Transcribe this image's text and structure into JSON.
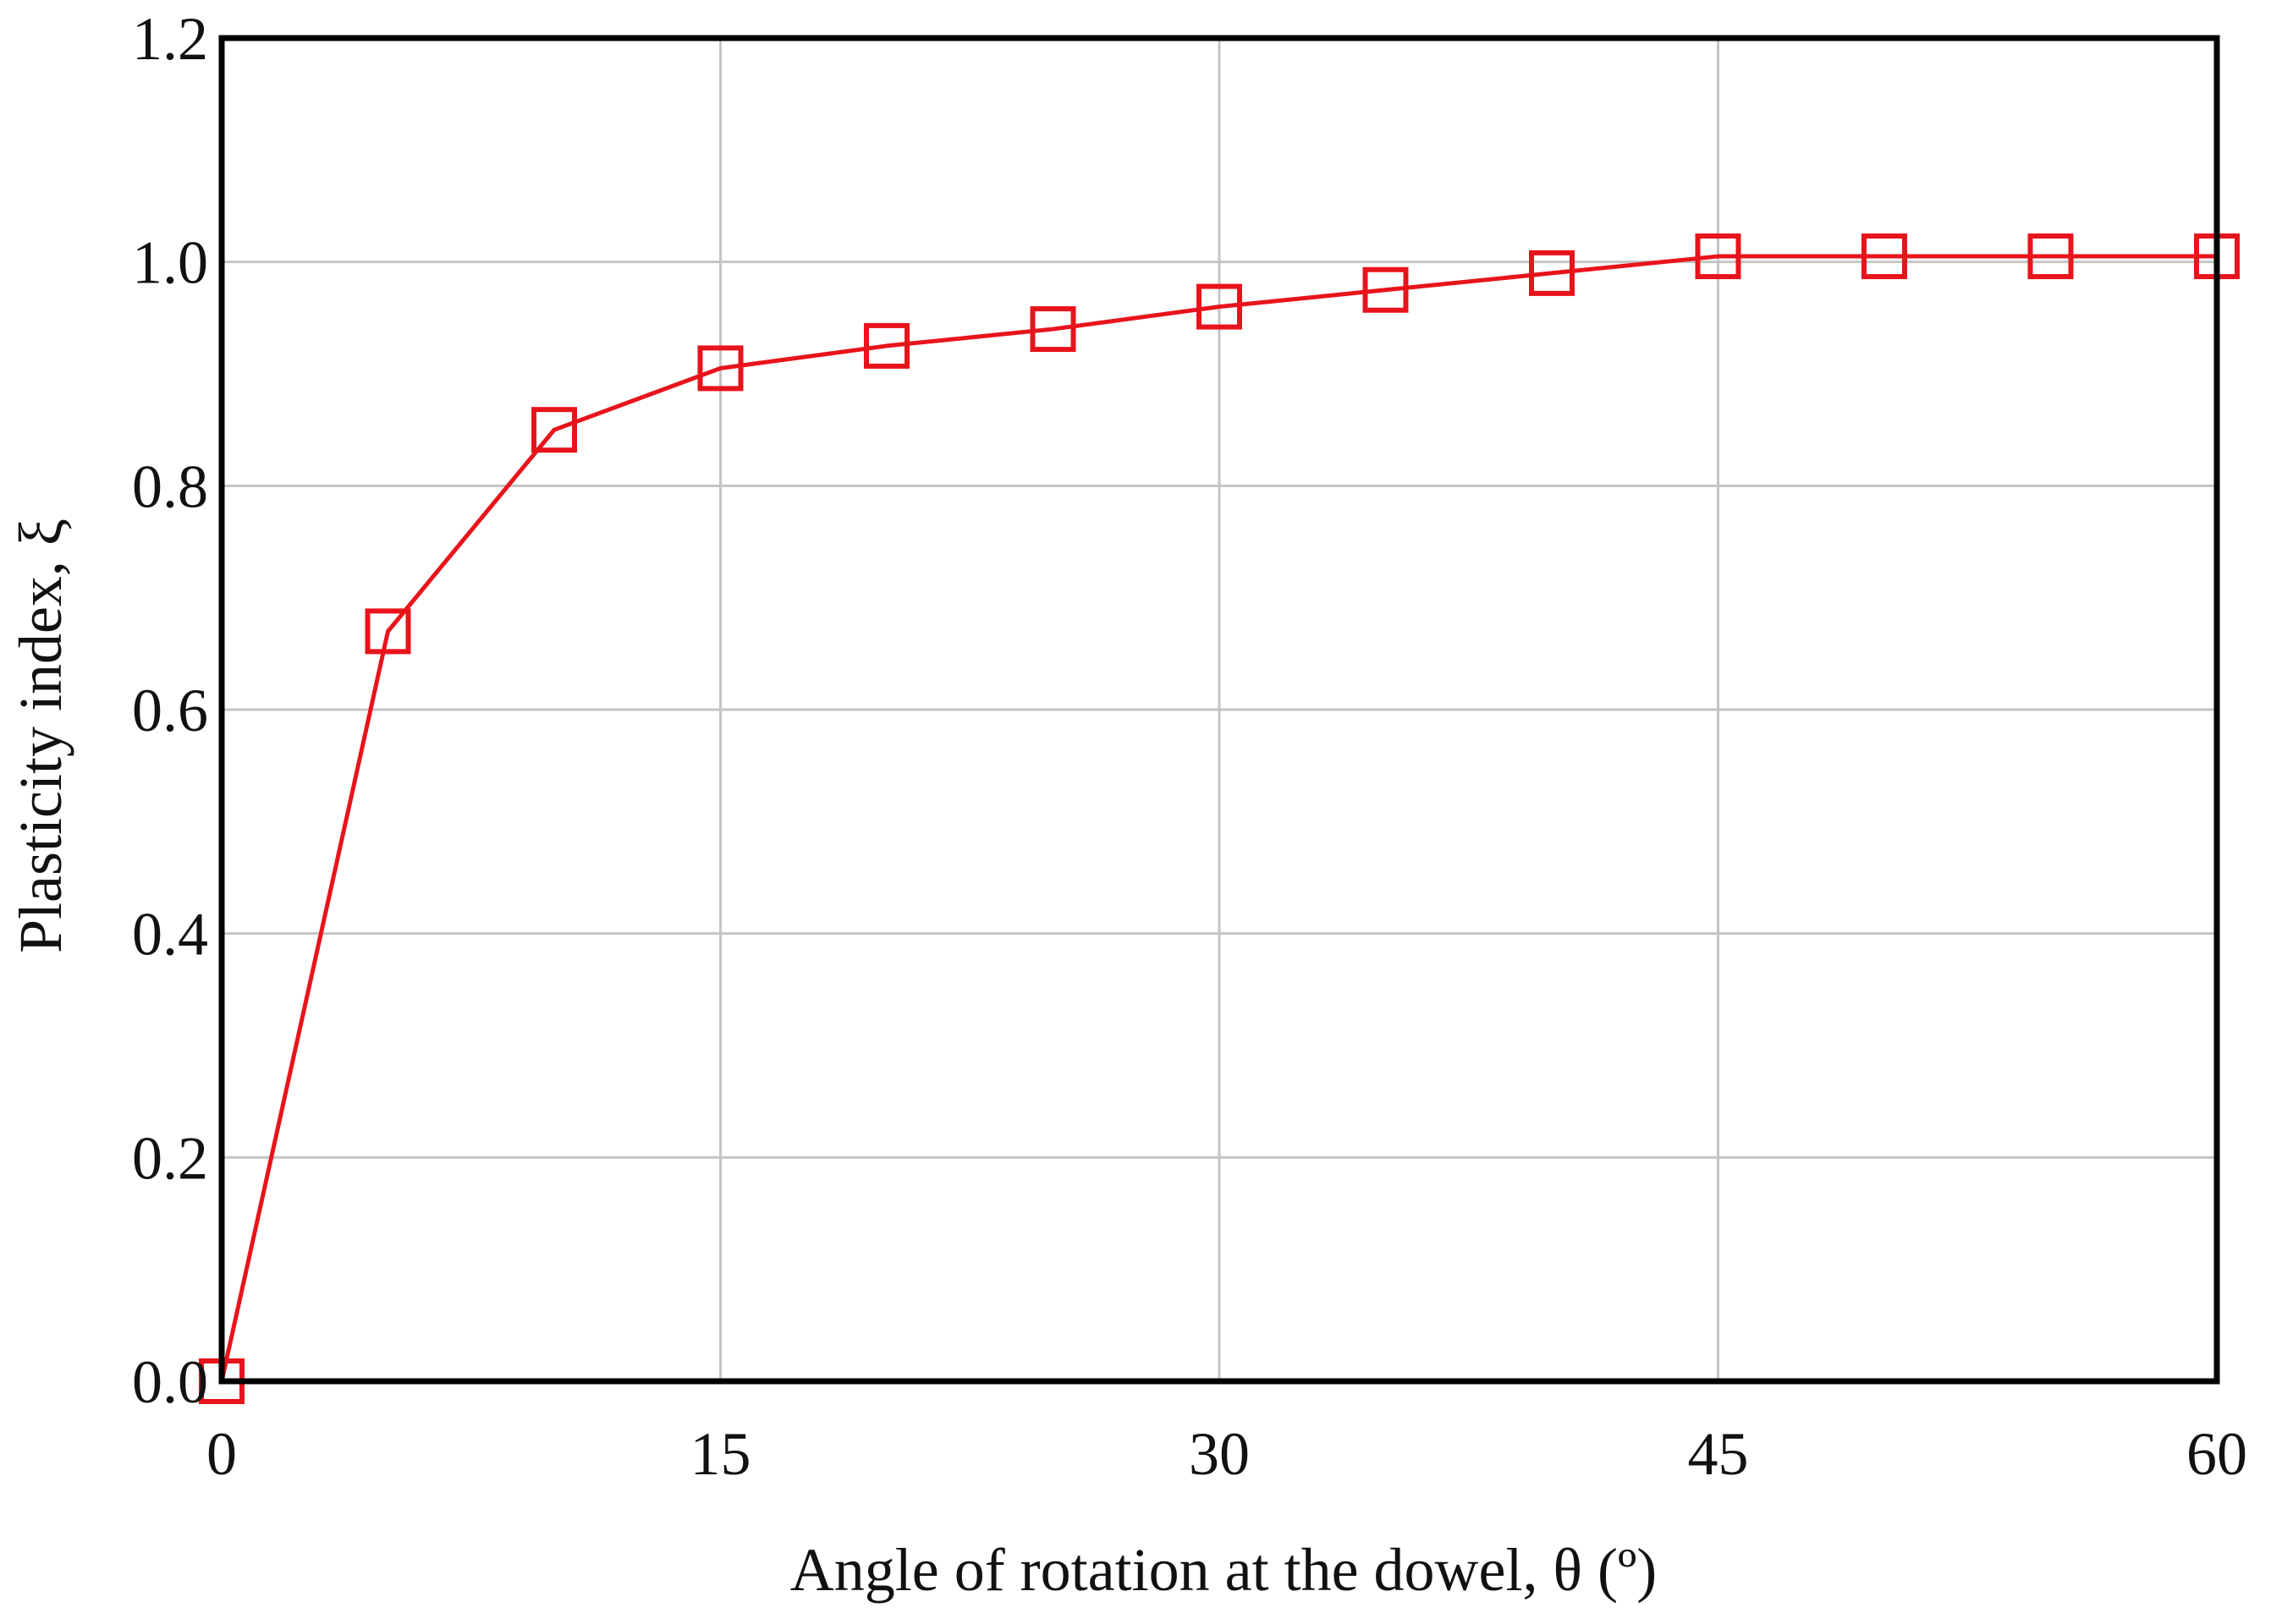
{
  "chart_data": {
    "type": "line",
    "title": "",
    "xlabel": "Angle of rotation at the dowel, θ (º)",
    "ylabel": "Plasticity index, ξ",
    "xlim": [
      0,
      60
    ],
    "ylim": [
      0,
      1.2
    ],
    "xticks": [
      0,
      15,
      30,
      45,
      60
    ],
    "xtick_labels": [
      "0",
      "15",
      "30",
      "45",
      "60"
    ],
    "yticks": [
      0,
      0.2,
      0.4,
      0.6,
      0.8,
      1.0,
      1.2
    ],
    "ytick_labels": [
      "0.0",
      "0.2",
      "0.4",
      "0.6",
      "0.8",
      "1.0",
      "1.2"
    ],
    "grid": true,
    "legend": "none",
    "series": [
      {
        "color": "#e8141b",
        "marker": "square",
        "x": [
          0,
          5,
          10,
          15,
          20,
          25,
          30,
          35,
          40,
          45,
          50,
          55,
          60
        ],
        "y": [
          0.0,
          0.67,
          0.85,
          0.905,
          0.925,
          0.94,
          0.96,
          0.975,
          0.99,
          1.005,
          1.005,
          1.005,
          1.005
        ]
      }
    ]
  }
}
